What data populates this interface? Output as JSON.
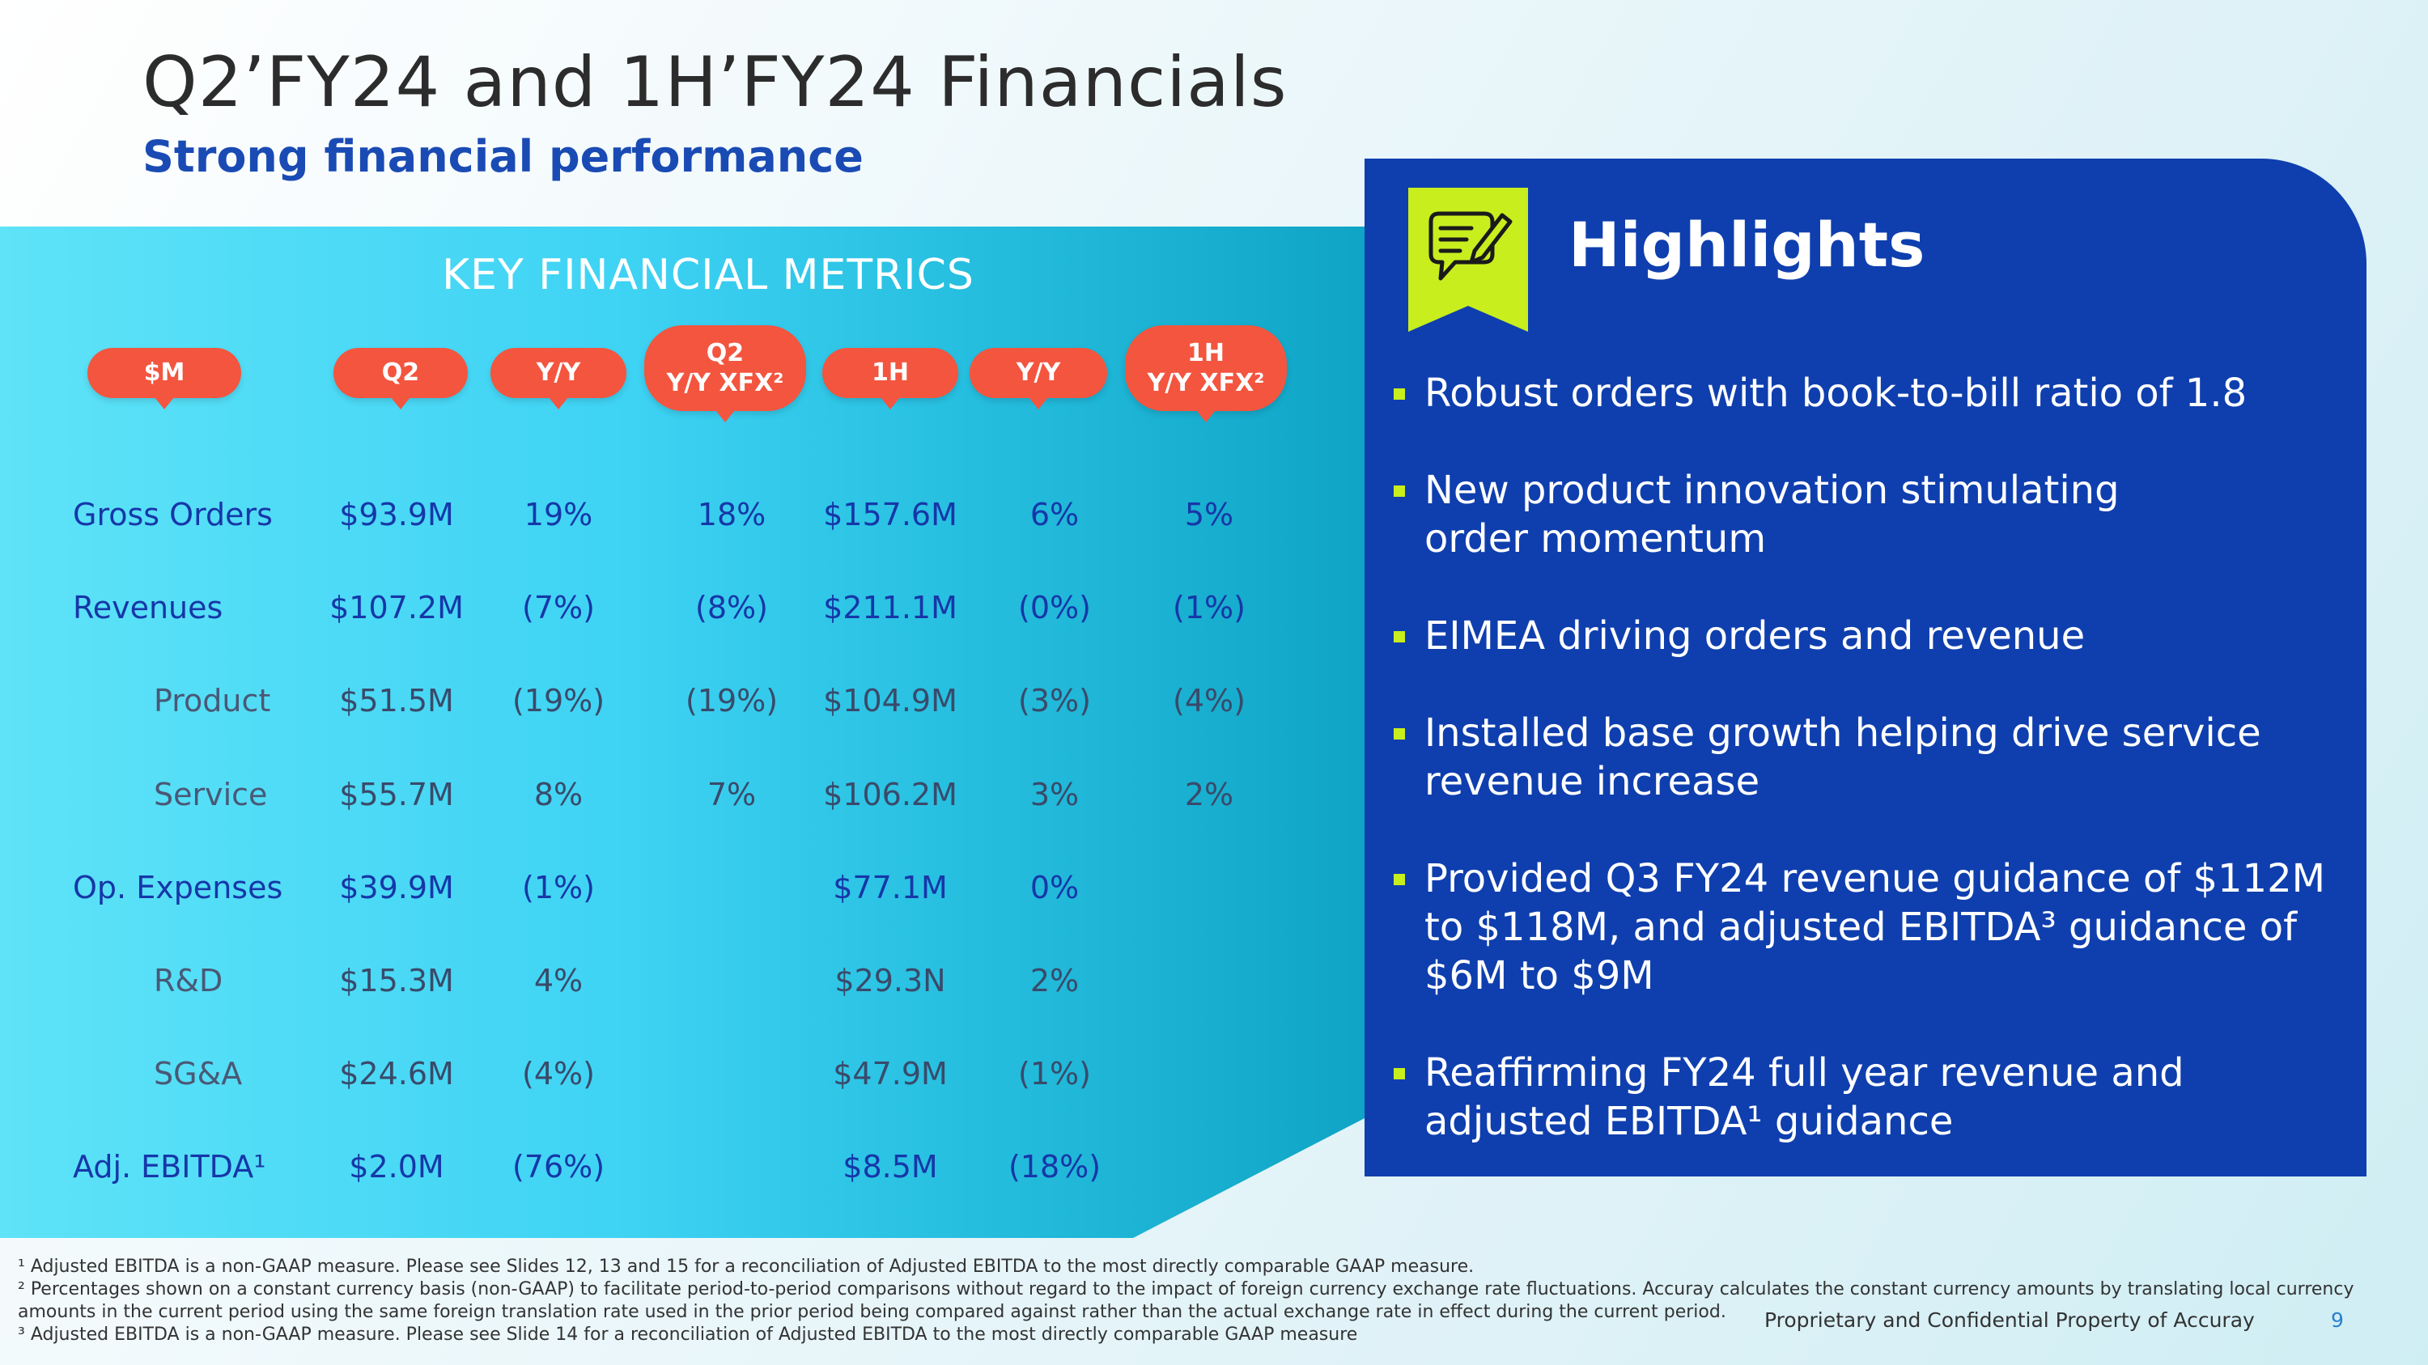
{
  "slide": {
    "title": "Q2’FY24 and 1H’FY24 Financials",
    "subtitle": "Strong financial performance"
  },
  "metrics": {
    "heading": "KEY FINANCIAL METRICS",
    "headers": [
      {
        "line1": "$M",
        "line2": ""
      },
      {
        "line1": "Q2",
        "line2": ""
      },
      {
        "line1": "Y/Y",
        "line2": ""
      },
      {
        "line1": "Q2",
        "line2": "Y/Y XFX²"
      },
      {
        "line1": "1H",
        "line2": ""
      },
      {
        "line1": "Y/Y",
        "line2": ""
      },
      {
        "line1": "1H",
        "line2": "Y/Y XFX²"
      }
    ],
    "rows": [
      {
        "label": "Gross Orders",
        "type": "main",
        "values": [
          "$93.9M",
          "19%",
          "18%",
          "$157.6M",
          "6%",
          "5%"
        ]
      },
      {
        "label": "Revenues",
        "type": "main",
        "values": [
          "$107.2M",
          "(7%)",
          "(8%)",
          "$211.1M",
          "(0%)",
          "(1%)"
        ]
      },
      {
        "label": "Product",
        "type": "sub",
        "values": [
          "$51.5M",
          "(19%)",
          "(19%)",
          "$104.9M",
          "(3%)",
          "(4%)"
        ]
      },
      {
        "label": "Service",
        "type": "sub",
        "values": [
          "$55.7M",
          "8%",
          "7%",
          "$106.2M",
          "3%",
          "2%"
        ]
      },
      {
        "label": "Op. Expenses",
        "type": "main",
        "values": [
          "$39.9M",
          "(1%)",
          "",
          "$77.1M",
          "0%",
          ""
        ]
      },
      {
        "label": "R&D",
        "type": "sub",
        "values": [
          "$15.3M",
          "4%",
          "",
          "$29.3N",
          "2%",
          ""
        ]
      },
      {
        "label": "SG&A",
        "type": "sub",
        "values": [
          "$24.6M",
          "(4%)",
          "",
          "$47.9M",
          "(1%)",
          ""
        ]
      },
      {
        "label": "Adj. EBITDA¹",
        "type": "main",
        "values": [
          "$2.0M",
          "(76%)",
          "",
          "$8.5M",
          "(18%)",
          ""
        ]
      }
    ]
  },
  "highlights": {
    "title": "Highlights",
    "icon": "chat-pencil-icon",
    "bullets": [
      {
        "lines": [
          "Robust orders with book-to-bill ratio of 1.8"
        ]
      },
      {
        "lines": [
          "New product innovation stimulating",
          "order momentum"
        ]
      },
      {
        "lines": [
          "EIMEA driving orders and revenue"
        ]
      },
      {
        "lines": [
          "Installed base growth helping drive service",
          "revenue increase"
        ]
      },
      {
        "lines": [
          "Provided Q3 FY24 revenue guidance of $112M",
          "to $118M, and adjusted EBITDA³ guidance of",
          "$6M to $9M"
        ]
      },
      {
        "lines": [
          "Reaffirming FY24 full year revenue and",
          "adjusted EBITDA¹ guidance"
        ]
      }
    ]
  },
  "footnotes": [
    "¹ Adjusted EBITDA is a non-GAAP measure.  Please see Slides 12, 13 and 15 for a reconciliation of Adjusted EBITDA to the most directly comparable GAAP measure.",
    "² Percentages shown on a constant currency basis (non-GAAP) to facilitate period-to-period comparisons without regard to the impact of foreign currency exchange rate fluctuations. Accuray calculates the constant currency amounts by translating local currency",
    "amounts in the current period using the same foreign translation rate used in the prior period being compared against rather than the actual exchange rate in effect during the current period.",
    "³ Adjusted EBITDA is a non-GAAP measure.  Please see Slide 14 for a reconciliation of Adjusted EBITDA to the most directly comparable GAAP measure"
  ],
  "footer": {
    "confidential": "Proprietary and Confidential Property of Accuray",
    "page": "9"
  },
  "colors": {
    "accent_red": "#f3553f",
    "highlights_blue": "#0f3fae",
    "lime": "#c8ee1e",
    "title_blue": "#1a4bb4"
  }
}
